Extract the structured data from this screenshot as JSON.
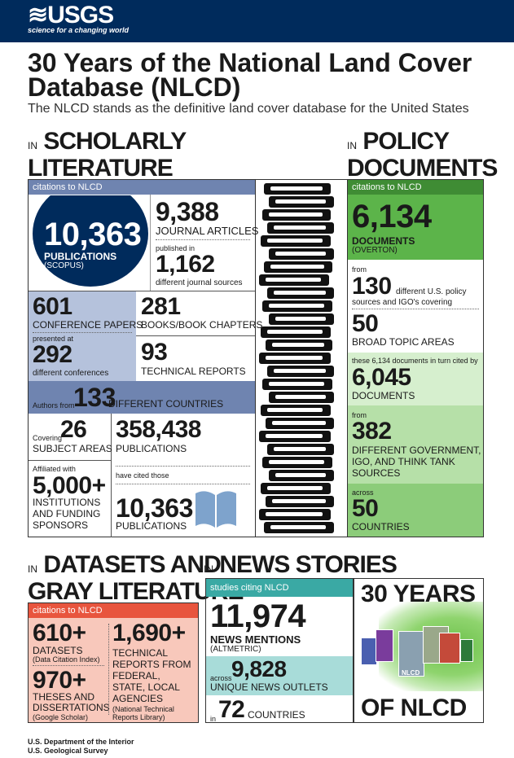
{
  "header": {
    "brand": "≋USGS",
    "tagline": "science for a changing world"
  },
  "title": "30 Years of the National Land Cover Database (NLCD)",
  "subtitle": "The NLCD stands as the definitive land cover database for the United States",
  "scholarly": {
    "in": "IN",
    "heading1": "SCHOLARLY",
    "heading2": "LITERATURE",
    "bar": "citations to NLCD",
    "pubs_value": "10,363",
    "pubs_label": "PUBLICATIONS",
    "pubs_source": "(SCOPUS)",
    "journal_value": "9,388",
    "journal_label": "JOURNAL ARTICLES",
    "published_in": "published in",
    "sources_value": "1,162",
    "sources_label": "different journal sources",
    "conf_value": "601",
    "conf_label": "CONFERENCE PAPERS",
    "presented_at": "presented at",
    "confs_value": "292",
    "confs_label": "different conferences",
    "books_value": "281",
    "books_label": "BOOKS/BOOK CHAPTERS",
    "tech_value": "93",
    "tech_label": "TECHNICAL REPORTS",
    "authors_from": "Authors from",
    "countries_value": "133",
    "countries_label": "DIFFERENT COUNTRIES",
    "covering": "Covering",
    "subj_value": "26",
    "subj_label": "SUBJECT AREAS",
    "affiliated": "Affiliated with",
    "inst_value": "5,000+",
    "inst_label1": "INSTITUTIONS",
    "inst_label2": "AND FUNDING",
    "inst_label3": "SPONSORS",
    "cited_pubs_value": "358,438",
    "cited_pubs_label": "PUBLICATIONS",
    "have_cited": "have cited those",
    "pubs2_value": "10,363",
    "pubs2_label": "PUBLICATIONS"
  },
  "policy": {
    "in": "IN",
    "heading1": "POLICY",
    "heading2": "DOCUMENTS",
    "bar": "citations to NLCD",
    "docs_value": "6,134",
    "docs_label": "DOCUMENTS",
    "docs_source": "(OVERTON)",
    "from": "from",
    "sources_value": "130",
    "sources_label1": "different U.S. policy",
    "sources_label2": "sources and IGO's covering",
    "topics_value": "50",
    "topics_label": "BROAD TOPIC AREAS",
    "turn_cited": "these 6,134 documents in turn cited by",
    "cited_value": "6,045",
    "cited_label": "DOCUMENTS",
    "from2": "from",
    "orgs_value": "382",
    "orgs_label1": "DIFFERENT GOVERNMENT,",
    "orgs_label2": "IGO, AND THINK TANK",
    "orgs_label3": "SOURCES",
    "across": "across",
    "countries_value": "50",
    "countries_label": "COUNTRIES"
  },
  "datasets": {
    "in": "IN",
    "heading1": "DATASETS AND",
    "heading2": "GRAY LITERATURE",
    "bar": "citations to NLCD",
    "ds_value": "610+",
    "ds_label": "DATASETS",
    "ds_source": "(Data Citation Index)",
    "theses_value": "970+",
    "theses_label1": "THESES AND",
    "theses_label2": "DISSERTATIONS",
    "theses_source": "(Google Scholar)",
    "tr_value": "1,690+",
    "tr_label1": "TECHNICAL",
    "tr_label2": "REPORTS FROM",
    "tr_label3": "FEDERAL,",
    "tr_label4": "STATE, LOCAL",
    "tr_label5": "AGENCIES",
    "tr_source1": "(National Technical",
    "tr_source2": "Reports Library)"
  },
  "news": {
    "in": "IN",
    "heading": "NEWS STORIES",
    "bar": "studies citing NLCD",
    "mentions_value": "11,974",
    "mentions_label": "NEWS MENTIONS",
    "mentions_source": "(ALTMETRIC)",
    "across": "across",
    "outlets_value": "9,828",
    "outlets_label": "UNIQUE NEWS OUTLETS",
    "in2": "in",
    "countries_value": "72",
    "countries_label": "COUNTRIES"
  },
  "years": {
    "top": "30 YEARS",
    "bottom": "OF NLCD",
    "map_label": "NLCD"
  },
  "footer": {
    "line1": "U.S. Department of the Interior",
    "line2": "U.S. Geological Survey"
  },
  "colors": {
    "navy": "#002b5c",
    "scholar_bar": "#6f84b0",
    "scholar_light": "#b5c2dc",
    "policy_dark": "#5cb44a",
    "policy_mid": "#9ed48e",
    "policy_light": "#d6efce",
    "dataset_red": "#e8553e",
    "dataset_light": "#f8c8bb",
    "news_teal": "#3aa9a4",
    "news_light": "#a8dcd9"
  }
}
